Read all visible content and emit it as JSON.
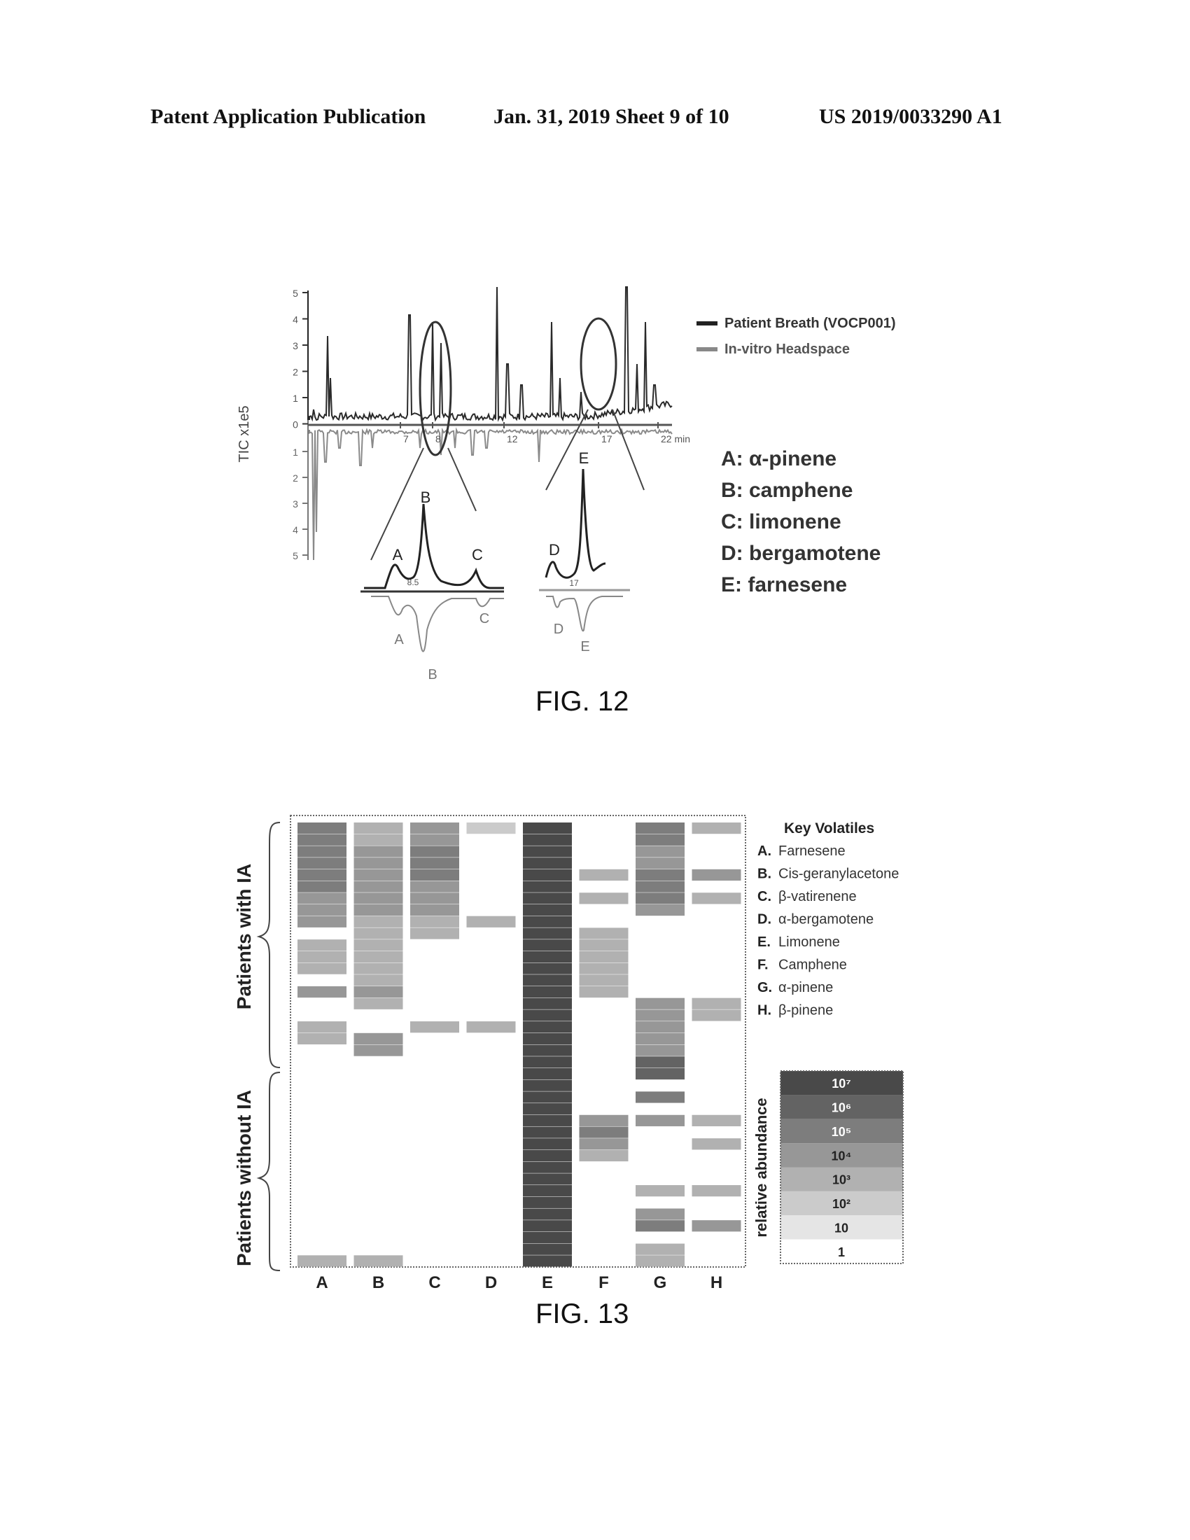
{
  "header": {
    "left": "Patent Application Publication",
    "middle": "Jan. 31, 2019  Sheet 9 of 10",
    "right": "US 2019/0033290 A1"
  },
  "fig12": {
    "caption": "FIG. 12",
    "ylabel": "TIC x1e5",
    "y_ticks_up": [
      "5",
      "4",
      "3",
      "2",
      "1",
      "0"
    ],
    "y_ticks_down": [
      "1",
      "2",
      "3",
      "4",
      "5"
    ],
    "x_ticks": [
      "7",
      "8",
      "12",
      "17",
      "22 min"
    ],
    "legend": [
      {
        "label": "Patient Breath (VOCP001)",
        "color": "#222222"
      },
      {
        "label": "In-vitro Headspace",
        "color": "#888888"
      }
    ],
    "compound_key": [
      "A: α-pinene",
      "B: camphene",
      "C: limonene",
      "D: bergamotene",
      "E: farnesene"
    ],
    "inset_left": {
      "peaks_top": [
        "A",
        "B",
        "C"
      ],
      "peaks_bottom": [
        "A",
        "B",
        "C"
      ],
      "tick": "8.5"
    },
    "inset_right": {
      "peaks_top": [
        "D",
        "E"
      ],
      "peaks_bottom": [
        "D",
        "E"
      ],
      "tick": "17"
    }
  },
  "fig13": {
    "caption": "FIG. 13",
    "row_group_top": "Patients with IA",
    "row_group_bottom": "Patients without IA",
    "columns": [
      "A",
      "B",
      "C",
      "D",
      "E",
      "F",
      "G",
      "H"
    ],
    "key_title": "Key Volatiles",
    "key_items": [
      {
        "letter": "A.",
        "name": "Farnesene"
      },
      {
        "letter": "B.",
        "name": "Cis-geranylacetone"
      },
      {
        "letter": "C.",
        "name": "β-vatirenene"
      },
      {
        "letter": "D.",
        "name": "α-bergamotene"
      },
      {
        "letter": "E.",
        "name": "Limonene"
      },
      {
        "letter": "F.",
        "name": "Camphene"
      },
      {
        "letter": "G.",
        "name": "α-pinene"
      },
      {
        "letter": "H.",
        "name": "β-pinene"
      }
    ],
    "colorbar_label": "relative abundance",
    "colorbar_ticks": [
      "10⁷",
      "10⁶",
      "10⁵",
      "10⁴",
      "10³",
      "10²",
      "10",
      "1"
    ]
  },
  "chart_data": [
    {
      "type": "line",
      "title": "",
      "ylabel": "TIC x1e5",
      "xlabel": "min",
      "ylim": [
        -5,
        5
      ],
      "series": [
        {
          "name": "Patient Breath (VOCP001)",
          "direction": "up"
        },
        {
          "name": "In-vitro Headspace",
          "direction": "down"
        }
      ]
    },
    {
      "type": "heatmap",
      "title": "",
      "columns": [
        "A",
        "B",
        "C",
        "D",
        "E",
        "F",
        "G",
        "H"
      ],
      "row_groups": [
        {
          "name": "Patients with IA",
          "rows": 20
        },
        {
          "name": "Patients without IA",
          "rows": 18
        }
      ],
      "scale": [
        "1",
        "10",
        "10²",
        "10³",
        "10⁴",
        "10⁵",
        "10⁶",
        "10⁷"
      ],
      "log10_abundance": [
        [
          5,
          3,
          4,
          2,
          7,
          0,
          5,
          3
        ],
        [
          5,
          3,
          4,
          0,
          7,
          0,
          5,
          0
        ],
        [
          5,
          4,
          5,
          0,
          7,
          0,
          4,
          0
        ],
        [
          5,
          4,
          5,
          0,
          7,
          0,
          4,
          0
        ],
        [
          5,
          4,
          5,
          0,
          7,
          3,
          5,
          4
        ],
        [
          5,
          4,
          4,
          0,
          7,
          0,
          5,
          0
        ],
        [
          4,
          4,
          4,
          0,
          7,
          3,
          5,
          3
        ],
        [
          4,
          4,
          4,
          0,
          7,
          0,
          4,
          0
        ],
        [
          4,
          3,
          3,
          3,
          7,
          0,
          0,
          0
        ],
        [
          0,
          3,
          3,
          0,
          7,
          3,
          0,
          0
        ],
        [
          3,
          3,
          0,
          0,
          7,
          3,
          0,
          0
        ],
        [
          3,
          3,
          0,
          0,
          7,
          3,
          0,
          0
        ],
        [
          3,
          3,
          0,
          0,
          7,
          3,
          0,
          0
        ],
        [
          0,
          3,
          0,
          0,
          7,
          3,
          0,
          0
        ],
        [
          4,
          4,
          0,
          0,
          7,
          3,
          0,
          0
        ],
        [
          0,
          3,
          0,
          0,
          7,
          0,
          4,
          3
        ],
        [
          0,
          0,
          0,
          0,
          7,
          0,
          4,
          3
        ],
        [
          3,
          0,
          3,
          3,
          7,
          0,
          4,
          0
        ],
        [
          3,
          4,
          0,
          0,
          7,
          0,
          4,
          0
        ],
        [
          0,
          4,
          0,
          0,
          7,
          0,
          4,
          0
        ],
        [
          0,
          0,
          0,
          0,
          7,
          0,
          6,
          0
        ],
        [
          0,
          0,
          0,
          0,
          7,
          0,
          6,
          0
        ],
        [
          0,
          0,
          0,
          0,
          7,
          0,
          0,
          0
        ],
        [
          0,
          0,
          0,
          0,
          7,
          0,
          5,
          0
        ],
        [
          0,
          0,
          0,
          0,
          7,
          0,
          0,
          0
        ],
        [
          0,
          0,
          0,
          0,
          7,
          4,
          4,
          3
        ],
        [
          0,
          0,
          0,
          0,
          7,
          5,
          0,
          0
        ],
        [
          0,
          0,
          0,
          0,
          7,
          4,
          0,
          3
        ],
        [
          0,
          0,
          0,
          0,
          7,
          3,
          0,
          0
        ],
        [
          0,
          0,
          0,
          0,
          7,
          0,
          0,
          0
        ],
        [
          0,
          0,
          0,
          0,
          7,
          0,
          0,
          0
        ],
        [
          0,
          0,
          0,
          0,
          7,
          0,
          3,
          3
        ],
        [
          0,
          0,
          0,
          0,
          7,
          0,
          0,
          0
        ],
        [
          0,
          0,
          0,
          0,
          7,
          0,
          4,
          0
        ],
        [
          0,
          0,
          0,
          0,
          7,
          0,
          5,
          4
        ],
        [
          0,
          0,
          0,
          0,
          7,
          0,
          0,
          0
        ],
        [
          0,
          0,
          0,
          0,
          7,
          0,
          3,
          0
        ],
        [
          3,
          3,
          0,
          0,
          7,
          0,
          3,
          0
        ]
      ]
    }
  ]
}
